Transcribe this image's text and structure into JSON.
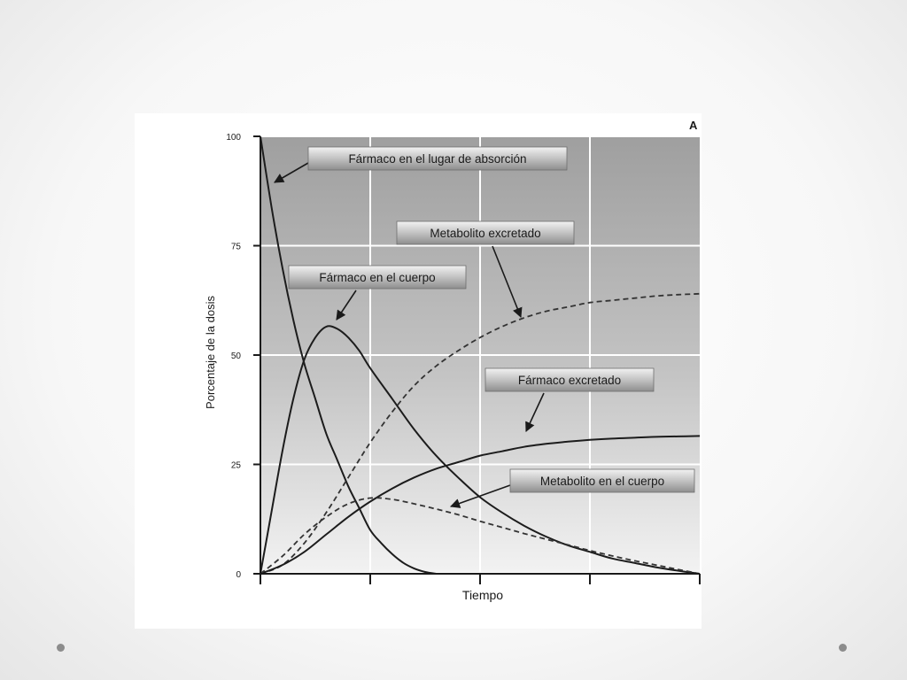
{
  "slide": {
    "bullet_color": "#8c8c8c"
  },
  "chart_data": {
    "type": "line",
    "panel_label": "A",
    "xlabel": "Tiempo",
    "ylabel": "Porcentaje de la dosis",
    "ylim": [
      0,
      100
    ],
    "xlim": [
      0,
      4
    ],
    "yticks": [
      "0",
      "25",
      "50",
      "75",
      "100"
    ],
    "grid": true,
    "series": [
      {
        "name": "Fármaco en el lugar de absorción",
        "style": "solid",
        "x": [
          0,
          0.1,
          0.2,
          0.3,
          0.4,
          0.5,
          0.6,
          0.7,
          0.8,
          0.9,
          1.0,
          1.1,
          1.2,
          1.3,
          1.4,
          1.5,
          1.6
        ],
        "y": [
          100,
          84,
          70,
          58,
          48,
          40,
          32,
          26,
          20,
          15,
          10,
          7,
          4.5,
          2.5,
          1.2,
          0.4,
          0
        ]
      },
      {
        "name": "Fármaco en el cuerpo",
        "style": "solid",
        "x": [
          0,
          0.1,
          0.2,
          0.3,
          0.4,
          0.5,
          0.6,
          0.7,
          0.8,
          0.9,
          1.0,
          1.2,
          1.4,
          1.6,
          1.8,
          2.0,
          2.2,
          2.4,
          2.6,
          2.8,
          3.0,
          3.2,
          3.4,
          3.6,
          3.8,
          4.0
        ],
        "y": [
          0,
          14,
          28,
          40,
          49,
          54,
          56.5,
          56,
          54,
          51,
          47,
          40,
          33,
          27,
          22,
          17.5,
          14,
          11,
          8.5,
          6.5,
          5,
          3.5,
          2.5,
          1.5,
          0.7,
          0
        ]
      },
      {
        "name": "Metabolito excretado",
        "style": "dashed",
        "x": [
          0,
          0.2,
          0.4,
          0.6,
          0.8,
          1.0,
          1.2,
          1.4,
          1.6,
          1.8,
          2.0,
          2.2,
          2.4,
          2.6,
          2.8,
          3.0,
          3.2,
          3.4,
          3.6,
          3.8,
          4.0
        ],
        "y": [
          0,
          2,
          7,
          14,
          22,
          30,
          37,
          43,
          47.5,
          51,
          54,
          56.5,
          58.5,
          60,
          61,
          62,
          62.5,
          63,
          63.5,
          63.8,
          64
        ]
      },
      {
        "name": "Fármaco excretado",
        "style": "solid",
        "x": [
          0,
          0.2,
          0.4,
          0.6,
          0.8,
          1.0,
          1.2,
          1.4,
          1.6,
          1.8,
          2.0,
          2.2,
          2.4,
          2.6,
          2.8,
          3.0,
          3.2,
          3.4,
          3.6,
          3.8,
          4.0
        ],
        "y": [
          0,
          2,
          5,
          9,
          13,
          16.5,
          19.5,
          22,
          24,
          25.5,
          27,
          28,
          29,
          29.7,
          30.2,
          30.6,
          30.9,
          31.1,
          31.3,
          31.4,
          31.5
        ]
      },
      {
        "name": "Metabolito en el cuerpo",
        "style": "dashed",
        "x": [
          0,
          0.2,
          0.4,
          0.6,
          0.8,
          1.0,
          1.2,
          1.4,
          1.6,
          1.8,
          2.0,
          2.2,
          2.4,
          2.6,
          2.8,
          3.0,
          3.2,
          3.4,
          3.6,
          3.8,
          4.0
        ],
        "y": [
          0,
          4,
          9,
          13,
          16,
          17.3,
          17,
          16,
          14.8,
          13.5,
          12,
          10.6,
          9.2,
          7.9,
          6.6,
          5.3,
          4.1,
          3,
          2,
          1,
          0
        ]
      }
    ],
    "annotations": [
      {
        "text": "Fármaco en el lugar de absorción",
        "target": "Fármaco en el lugar de absorción"
      },
      {
        "text": "Metabolito excretado",
        "target": "Metabolito excretado"
      },
      {
        "text": "Fármaco en el cuerpo",
        "target": "Fármaco en el cuerpo"
      },
      {
        "text": "Fármaco excretado",
        "target": "Fármaco excretado"
      },
      {
        "text": "Metabolito en el cuerpo",
        "target": "Metabolito en el cuerpo"
      }
    ]
  }
}
